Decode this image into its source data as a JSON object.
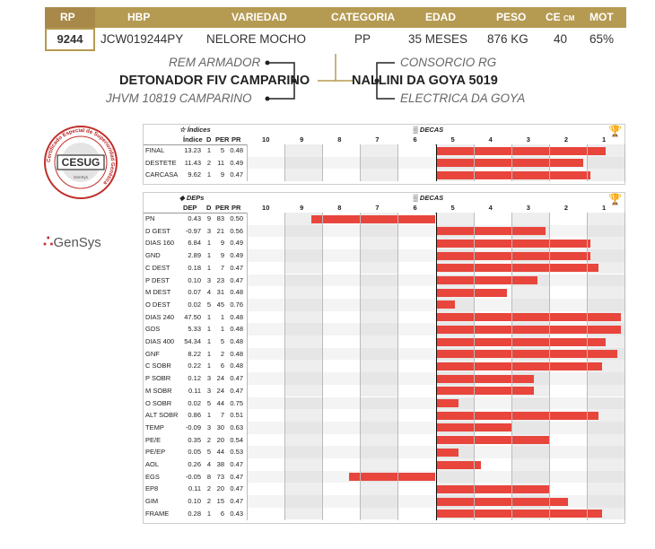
{
  "header": {
    "cols": {
      "rp": "RP",
      "hbp": "HBP",
      "variedad": "VARIEDAD",
      "categoria": "CATEGORIA",
      "edad": "EDAD",
      "peso": "PESO",
      "ce": "CE",
      "ce_unit": "CM",
      "mot": "MOT"
    },
    "values": {
      "rp": "9244",
      "hbp": "JCW019244PY",
      "variedad": "NELORE MOCHO",
      "categoria": "PP",
      "edad": "35 MESES",
      "peso": "876 KG",
      "ce": "40",
      "mot": "65%"
    }
  },
  "pedigree": {
    "sire": "DETONADOR FIV CAMPARINO",
    "sire_sire": "REM ARMADOR",
    "sire_dam": "JHVM 10819 CAMPARINO",
    "dam": "NALLINI DA GOYA 5019",
    "dam_sire": "CONSORCIO RG",
    "dam_dam": "ELECTRICA DA GOYA"
  },
  "logos": {
    "cesug_text": "CESUG",
    "cesug_ring": "Certificado Especial de Superioridad Genética",
    "cesug_sub": "GenSys",
    "gensys_text": "GenSys"
  },
  "colors": {
    "gold": "#b59a52",
    "bar": "#e8453c",
    "accent_red": "#dd2222"
  },
  "indices_table": {
    "title": "Índices",
    "decas_label": "DECAS",
    "col_indice": "Índice",
    "col_d": "D",
    "col_per": "PER",
    "col_pr": "PR",
    "deca_labels": [
      "10",
      "9",
      "8",
      "7",
      "6",
      "5",
      "4",
      "3",
      "2",
      "1"
    ],
    "rows": [
      {
        "name": "FINAL",
        "val": "13.23",
        "d": "1",
        "per": "5",
        "pr": "0.48",
        "pct": 95
      },
      {
        "name": "DESTETE",
        "val": "11.43",
        "d": "2",
        "per": "11",
        "pr": "0.49",
        "pct": 89
      },
      {
        "name": "CARCASA",
        "val": "9.62",
        "d": "1",
        "per": "9",
        "pr": "0.47",
        "pct": 91
      }
    ]
  },
  "deps_table": {
    "title": "DEPs",
    "decas_label": "DECAS",
    "col_dep": "DEP",
    "col_d": "D",
    "col_per": "PER",
    "col_pr": "PR",
    "deca_labels": [
      "10",
      "9",
      "8",
      "7",
      "6",
      "5",
      "4",
      "3",
      "2",
      "1"
    ],
    "rows": [
      {
        "name": "PN",
        "val": "0.43",
        "d": "9",
        "per": "83",
        "pr": "0.50",
        "pct": 17
      },
      {
        "name": "D GEST",
        "val": "-0.97",
        "d": "3",
        "per": "21",
        "pr": "0.56",
        "pct": 79
      },
      {
        "name": "DIAS 160",
        "val": "6.84",
        "d": "1",
        "per": "9",
        "pr": "0.49",
        "pct": 91
      },
      {
        "name": "GND",
        "val": "2.89",
        "d": "1",
        "per": "9",
        "pr": "0.49",
        "pct": 91
      },
      {
        "name": "C DEST",
        "val": "0.18",
        "d": "1",
        "per": "7",
        "pr": "0.47",
        "pct": 93
      },
      {
        "name": "P DEST",
        "val": "0.10",
        "d": "3",
        "per": "23",
        "pr": "0.47",
        "pct": 77
      },
      {
        "name": "M DEST",
        "val": "0.07",
        "d": "4",
        "per": "31",
        "pr": "0.48",
        "pct": 69
      },
      {
        "name": "O DEST",
        "val": "0.02",
        "d": "5",
        "per": "45",
        "pr": "0.76",
        "pct": 55
      },
      {
        "name": "DIAS 240",
        "val": "47.50",
        "d": "1",
        "per": "1",
        "pr": "0.48",
        "pct": 99
      },
      {
        "name": "GDS",
        "val": "5.33",
        "d": "1",
        "per": "1",
        "pr": "0.48",
        "pct": 99
      },
      {
        "name": "DIAS 400",
        "val": "54.34",
        "d": "1",
        "per": "5",
        "pr": "0.48",
        "pct": 95
      },
      {
        "name": "GNF",
        "val": "8.22",
        "d": "1",
        "per": "2",
        "pr": "0.48",
        "pct": 98
      },
      {
        "name": "C SOBR",
        "val": "0.22",
        "d": "1",
        "per": "6",
        "pr": "0.48",
        "pct": 94
      },
      {
        "name": "P SOBR",
        "val": "0.12",
        "d": "3",
        "per": "24",
        "pr": "0.47",
        "pct": 76
      },
      {
        "name": "M SOBR",
        "val": "0.11",
        "d": "3",
        "per": "24",
        "pr": "0.47",
        "pct": 76
      },
      {
        "name": "O SOBR",
        "val": "0.02",
        "d": "5",
        "per": "44",
        "pr": "0.75",
        "pct": 56
      },
      {
        "name": "ALT SOBR",
        "val": "0.86",
        "d": "1",
        "per": "7",
        "pr": "0.51",
        "pct": 93
      },
      {
        "name": "TEMP",
        "val": "-0.09",
        "d": "3",
        "per": "30",
        "pr": "0.63",
        "pct": 70
      },
      {
        "name": "PE/E",
        "val": "0.35",
        "d": "2",
        "per": "20",
        "pr": "0.54",
        "pct": 80
      },
      {
        "name": "PE/EP",
        "val": "0.05",
        "d": "5",
        "per": "44",
        "pr": "0.53",
        "pct": 56
      },
      {
        "name": "AOL",
        "val": "0.26",
        "d": "4",
        "per": "38",
        "pr": "0.47",
        "pct": 62
      },
      {
        "name": "EGS",
        "val": "-0.05",
        "d": "8",
        "per": "73",
        "pr": "0.47",
        "pct": 27
      },
      {
        "name": "EP8",
        "val": "0.11",
        "d": "2",
        "per": "20",
        "pr": "0.47",
        "pct": 80
      },
      {
        "name": "GIM",
        "val": "0.10",
        "d": "2",
        "per": "15",
        "pr": "0.47",
        "pct": 85
      },
      {
        "name": "FRAME",
        "val": "0.28",
        "d": "1",
        "per": "6",
        "pr": "0.43",
        "pct": 94
      }
    ]
  }
}
